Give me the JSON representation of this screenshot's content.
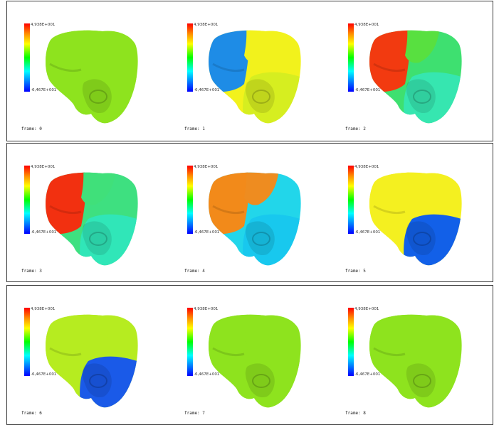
{
  "colorbar": {
    "max_label": "4,938E+001",
    "min_label": "-6,467E+001"
  },
  "frames": [
    {
      "label": "frame:  0",
      "colors": {
        "base": "#8ee31e",
        "a": "#8ee31e",
        "b": "#8ee31e",
        "c": "#8ee31e"
      }
    },
    {
      "label": "frame:  1",
      "colors": {
        "base": "#f2f21c",
        "a": "#1e8ce6",
        "b": "#f2f21c",
        "c": "#d6ee20"
      }
    },
    {
      "label": "frame:  2",
      "colors": {
        "base": "#3ee070",
        "a": "#f23a10",
        "b": "#58e040",
        "c": "#36e6b0"
      }
    },
    {
      "label": "frame:  3",
      "colors": {
        "base": "#3ee080",
        "a": "#f23010",
        "b": "#40e07a",
        "c": "#30e6b8"
      }
    },
    {
      "label": "frame:  4",
      "colors": {
        "base": "#22d6ea",
        "a": "#f28a1a",
        "b": "#ee8c20",
        "c": "#18c8ee"
      }
    },
    {
      "label": "frame:  5",
      "colors": {
        "base": "#f4f020",
        "a": "#f4f020",
        "b": "#f4f020",
        "c": "#1260e8"
      }
    },
    {
      "label": "frame:  6",
      "colors": {
        "base": "#b6ec20",
        "a": "#b6ec20",
        "b": "#b6ec20",
        "c": "#1a5ae8"
      }
    },
    {
      "label": "frame:  7",
      "colors": {
        "base": "#8ee31e",
        "a": "#8ee31e",
        "b": "#8ee31e",
        "c": "#8ee31e"
      }
    },
    {
      "label": "frame:  8",
      "colors": {
        "base": "#8ee31e",
        "a": "#8ee31e",
        "b": "#8ee31e",
        "c": "#8ee31e"
      }
    }
  ]
}
